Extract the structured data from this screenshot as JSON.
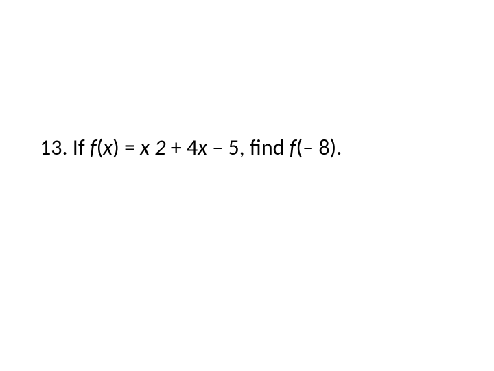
{
  "problem": {
    "number": "13.",
    "text_prefix": " If ",
    "func_name_1": "f",
    "open_paren_1": "(",
    "var_x_1": "x",
    "close_paren_1": ")",
    "equals": " = ",
    "var_x_2": "x",
    "exponent_space": " ",
    "exponent": "2",
    "plus": " + 4",
    "var_x_3": "x",
    "minus_5": " – 5, find ",
    "func_name_2": "f",
    "open_paren_2": "(– 8).",
    "fontsize": 32,
    "color": "#000000",
    "background": "#ffffff"
  }
}
